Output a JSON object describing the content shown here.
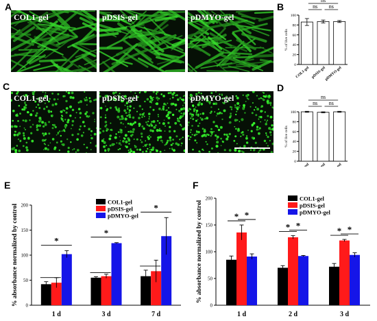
{
  "panels": {
    "A": "A",
    "B": "B",
    "C": "C",
    "D": "D",
    "E": "E",
    "F": "F"
  },
  "micrographs": {
    "row_a": [
      "COL1-gel",
      "pDSIS-gel",
      "pDMYO-gel"
    ],
    "row_c": [
      "COL1-gel",
      "pDSIS-gel",
      "pDMYO-gel"
    ]
  },
  "colors": {
    "col1": "#000000",
    "pdsis": "#ff1a1a",
    "pdmyo": "#1515e8",
    "bar_small": "#ffffff",
    "cell": "#35c52e"
  },
  "chart_data": [
    {
      "panel": "B",
      "type": "bar",
      "categories": [
        "COL1-gel",
        "pDSIS-gel",
        "pDMYO-gel"
      ],
      "values": [
        86,
        87,
        87
      ],
      "errors": [
        7,
        3,
        2
      ],
      "ylabel": "% of live cells",
      "ylim": [
        0,
        100
      ],
      "yticks": [
        0,
        20,
        40,
        60,
        80,
        100
      ],
      "annotations": [
        "ns",
        "ns",
        "ns"
      ]
    },
    {
      "panel": "D",
      "type": "bar",
      "categories": [
        "COL1-gel",
        "pDSIS-gel",
        "pDMYO-gel"
      ],
      "values": [
        100,
        99,
        100
      ],
      "errors": [
        1,
        1,
        1
      ],
      "ylabel": "% of live cells",
      "ylim": [
        0,
        100
      ],
      "yticks": [
        0,
        20,
        40,
        60,
        80,
        100
      ],
      "annotations": [
        "ns",
        "ns",
        "ns"
      ]
    },
    {
      "panel": "E",
      "type": "bar",
      "categories": [
        "1 d",
        "3 d",
        "7 d"
      ],
      "series": [
        {
          "name": "COL1-gel",
          "values": [
            42,
            55,
            58
          ],
          "errors": [
            5,
            2,
            12
          ]
        },
        {
          "name": "pDSIS-gel",
          "values": [
            45,
            58,
            68
          ],
          "errors": [
            10,
            4,
            22
          ]
        },
        {
          "name": "pDMYO-gel",
          "values": [
            102,
            124,
            138
          ],
          "errors": [
            7,
            1,
            37
          ]
        }
      ],
      "ylabel": "% absorbance normalized by control",
      "ylim": [
        0,
        200
      ],
      "yticks": [
        0,
        50,
        100,
        150,
        200
      ],
      "annotations": [
        "*",
        "*",
        "*"
      ]
    },
    {
      "panel": "F",
      "type": "bar",
      "categories": [
        "1 d",
        "2 d",
        "3 d"
      ],
      "series": [
        {
          "name": "COL1-gel",
          "values": [
            85,
            70,
            72
          ],
          "errors": [
            7,
            4,
            6
          ]
        },
        {
          "name": "pDSIS-gel",
          "values": [
            136,
            127,
            121
          ],
          "errors": [
            14,
            3,
            2
          ]
        },
        {
          "name": "pDMYO-gel",
          "values": [
            91,
            92,
            94
          ],
          "errors": [
            5,
            1,
            4
          ]
        }
      ],
      "ylabel": "% absorbance normalized by control",
      "ylim": [
        0,
        200
      ],
      "yticks": [
        0,
        50,
        100,
        150,
        200
      ],
      "annotations": [
        "*",
        "*",
        "*",
        "*",
        "*",
        "*"
      ]
    }
  ]
}
